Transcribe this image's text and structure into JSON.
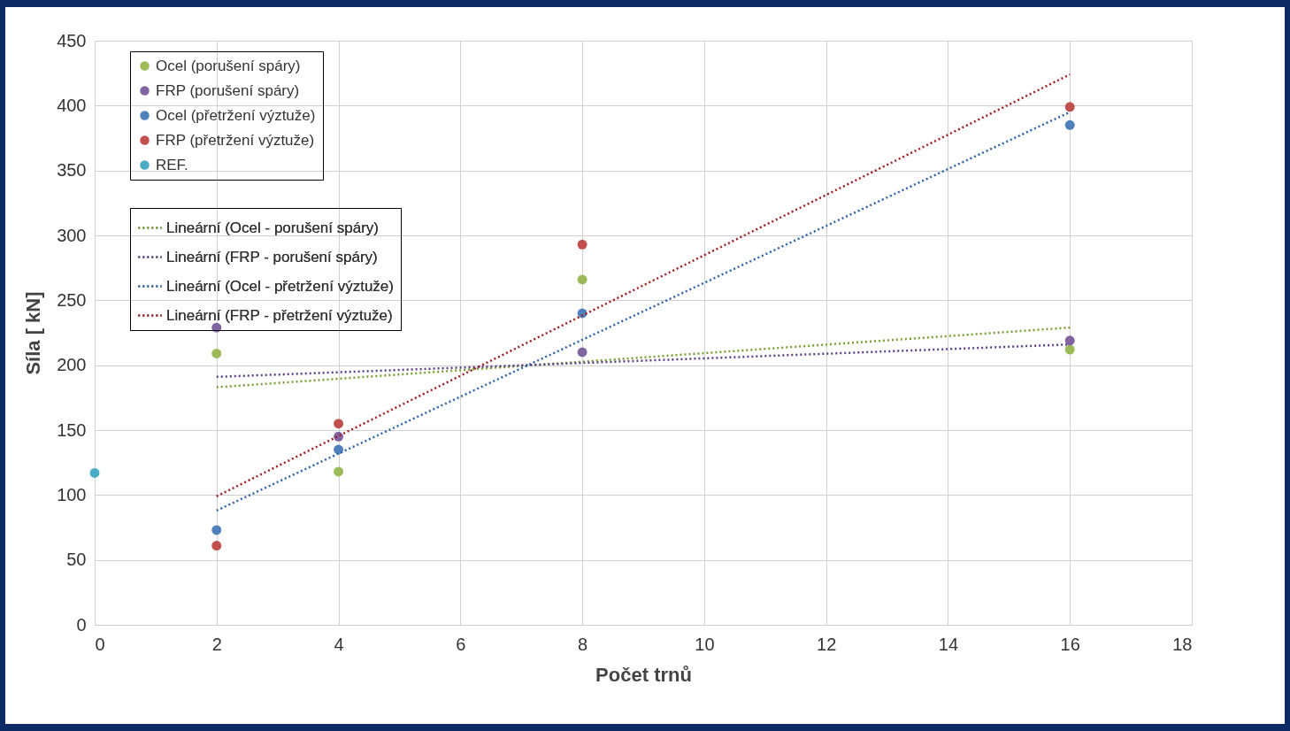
{
  "chart_data": {
    "type": "scatter",
    "xlabel": "Počet trnů",
    "ylabel": "Síla [ kN]",
    "xlim": [
      0,
      18
    ],
    "xticks": [
      0,
      2,
      4,
      6,
      8,
      10,
      12,
      14,
      16,
      18
    ],
    "ylim": [
      0,
      450
    ],
    "yticks": [
      0,
      50,
      100,
      150,
      200,
      250,
      300,
      350,
      400,
      450
    ],
    "grid": true,
    "legend": "top left",
    "series": [
      {
        "name": "Ocel (porušení spáry)",
        "color": "#9bbb59",
        "marker": "circle",
        "x": [
          2,
          4,
          8,
          16
        ],
        "values": [
          209,
          118,
          266,
          212
        ]
      },
      {
        "name": "FRP (porušení spáry)",
        "color": "#8064a2",
        "marker": "circle",
        "x": [
          2,
          4,
          8,
          16
        ],
        "values": [
          229,
          145,
          210,
          219
        ]
      },
      {
        "name": "Ocel (přetržení výztuže)",
        "color": "#4f81bd",
        "marker": "circle",
        "x": [
          2,
          4,
          8,
          16
        ],
        "values": [
          73,
          135,
          240,
          385
        ]
      },
      {
        "name": "FRP (přetržení výztuže)",
        "color": "#c0504d",
        "marker": "circle",
        "x": [
          2,
          4,
          8,
          16
        ],
        "values": [
          61,
          155,
          293,
          399
        ]
      },
      {
        "name": "REF.",
        "color": "#4bacc6",
        "marker": "circle",
        "x": [
          0
        ],
        "values": [
          117
        ]
      },
      {
        "name": "Lineární (Ocel - porušení spáry)",
        "type": "line",
        "line_style": "dotted",
        "color": "#77a033",
        "x": [
          2,
          16
        ],
        "values": [
          183,
          229
        ]
      },
      {
        "name": "Lineární (FRP - porušení spáry)",
        "type": "line",
        "line_style": "dotted",
        "color": "#5f3f8a",
        "x": [
          2,
          16
        ],
        "values": [
          191,
          216
        ]
      },
      {
        "name": "Lineární (Ocel - přetržení výztuže)",
        "type": "line",
        "line_style": "dotted",
        "color": "#2e64a8",
        "x": [
          2,
          16
        ],
        "values": [
          88,
          395
        ]
      },
      {
        "name": "Lineární (FRP - přetržení výztuže)",
        "type": "line",
        "line_style": "dotted",
        "color": "#a01e22",
        "x": [
          2,
          16
        ],
        "values": [
          99,
          424
        ]
      }
    ]
  }
}
